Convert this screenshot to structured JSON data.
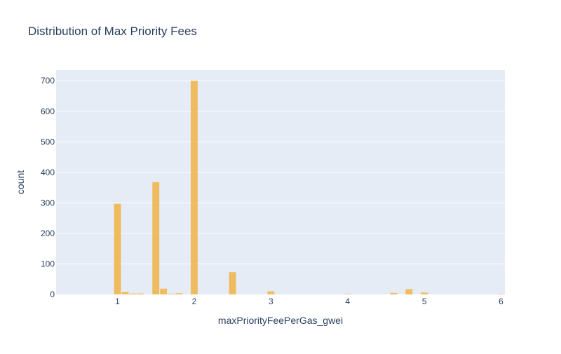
{
  "chart_data": {
    "type": "bar",
    "title": "Distribution of Max Priority Fees",
    "xlabel": "maxPriorityFeePerGas_gwei",
    "ylabel": "count",
    "xlim": [
      0.2,
      6.05
    ],
    "ylim": [
      0,
      735
    ],
    "x_ticks": [
      1,
      2,
      3,
      4,
      5,
      6
    ],
    "y_ticks": [
      0,
      100,
      200,
      300,
      400,
      500,
      600,
      700
    ],
    "bin_width": 0.1,
    "bins": [
      {
        "x": 1.0,
        "count": 297
      },
      {
        "x": 1.1,
        "count": 8
      },
      {
        "x": 1.2,
        "count": 3
      },
      {
        "x": 1.3,
        "count": 3
      },
      {
        "x": 1.5,
        "count": 368
      },
      {
        "x": 1.6,
        "count": 19
      },
      {
        "x": 1.7,
        "count": 2
      },
      {
        "x": 1.8,
        "count": 4
      },
      {
        "x": 2.0,
        "count": 700
      },
      {
        "x": 2.5,
        "count": 73
      },
      {
        "x": 3.0,
        "count": 10
      },
      {
        "x": 4.0,
        "count": 1
      },
      {
        "x": 4.6,
        "count": 5
      },
      {
        "x": 4.8,
        "count": 17
      },
      {
        "x": 5.0,
        "count": 6
      },
      {
        "x": 6.0,
        "count": 1
      }
    ],
    "grid": true,
    "legend": "none",
    "colors": {
      "bar": "#F0B443",
      "plot_bg": "#E5ECF6",
      "grid": "#FFFFFF",
      "text": "#2A3F5F"
    }
  }
}
